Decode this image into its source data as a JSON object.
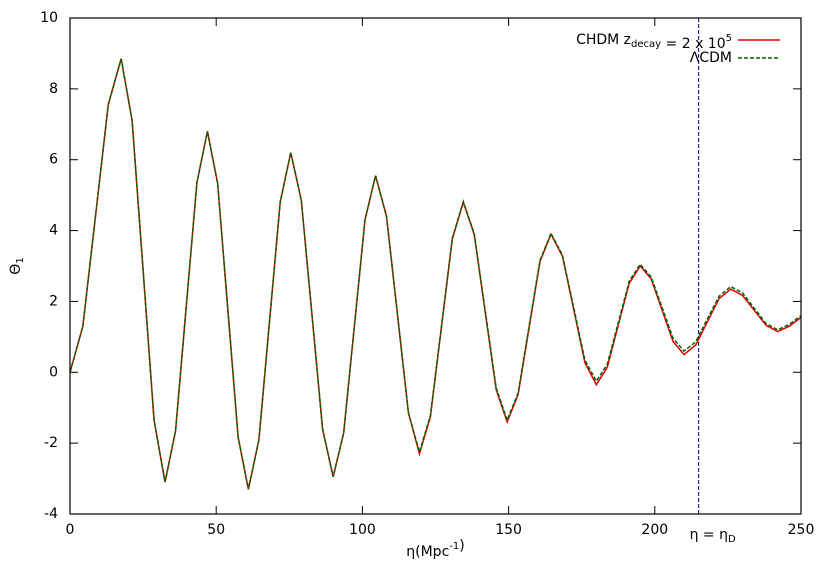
{
  "chart_data": {
    "type": "line",
    "xlabel": [
      "η(Mpc",
      {
        "sup": "-1"
      },
      ")"
    ],
    "ylabel": [
      "Θ",
      {
        "sub": "1"
      }
    ],
    "xlim": [
      0,
      250
    ],
    "xticks": [
      0,
      50,
      100,
      150,
      200,
      250
    ],
    "ylim": [
      -4,
      10
    ],
    "yticks": [
      -4,
      -2,
      0,
      2,
      4,
      6,
      8,
      10
    ],
    "legend": "top-right",
    "annotation": {
      "text": [
        "η = η",
        {
          "sub": "D"
        }
      ],
      "x": 215,
      "color": "#00008b"
    },
    "x": [
      0,
      4.4,
      8.75,
      13.1,
      17.5,
      21.25,
      25,
      28.75,
      32.5,
      36.1,
      39.75,
      43.4,
      47,
      50.5,
      54,
      57.5,
      61,
      64.6,
      68.25,
      71.9,
      75.5,
      79.1,
      82.75,
      86.4,
      90,
      93.6,
      97.25,
      100.9,
      104.5,
      108.25,
      112,
      115.75,
      119.5,
      123.25,
      127,
      130.75,
      134.5,
      138.25,
      142,
      145.75,
      149.5,
      153.25,
      157,
      160.75,
      164.5,
      168.4,
      172.25,
      176.1,
      180,
      183.75,
      187.5,
      191.25,
      195,
      198.75,
      202.5,
      206.25,
      210,
      214,
      218,
      222,
      226,
      230,
      234,
      238,
      242,
      246,
      250
    ],
    "series": [
      {
        "name": [
          "CHDM z",
          {
            "sub": "decay"
          },
          " = 2 x 10",
          {
            "sup": "5"
          }
        ],
        "color": "#e00000",
        "dash": false,
        "values": [
          0,
          1.3,
          4.43,
          7.56,
          8.85,
          7.1,
          2.88,
          -1.35,
          -3.1,
          -1.65,
          1.85,
          5.35,
          6.8,
          5.33,
          1.75,
          -1.83,
          -3.3,
          -1.91,
          1.45,
          4.81,
          6.2,
          4.86,
          1.63,
          -1.61,
          -2.95,
          -1.71,
          1.3,
          4.31,
          5.55,
          4.4,
          1.63,
          -1.15,
          -2.3,
          -1.26,
          1.25,
          3.76,
          4.8,
          3.89,
          1.7,
          -0.49,
          -1.4,
          -0.63,
          1.25,
          3.13,
          3.9,
          3.28,
          1.78,
          0.27,
          -0.35,
          0.14,
          1.33,
          2.51,
          3.0,
          2.64,
          1.75,
          0.87,
          0.5,
          0.77,
          1.43,
          2.08,
          2.35,
          2.17,
          1.75,
          1.33,
          1.15,
          1.3,
          1.55
        ]
      },
      {
        "name": [
          "ΛCDM"
        ],
        "color": "#006400",
        "dash": true,
        "values": [
          0,
          1.3,
          4.43,
          7.56,
          8.85,
          7.1,
          2.88,
          -1.35,
          -3.1,
          -1.65,
          1.85,
          5.35,
          6.8,
          5.33,
          1.75,
          -1.83,
          -3.3,
          -1.91,
          1.45,
          4.81,
          6.2,
          4.86,
          1.63,
          -1.61,
          -2.95,
          -1.71,
          1.3,
          4.31,
          5.55,
          4.4,
          1.63,
          -1.15,
          -2.25,
          -1.22,
          1.27,
          3.78,
          4.82,
          3.91,
          1.74,
          -0.44,
          -1.35,
          -0.59,
          1.3,
          3.16,
          3.92,
          3.31,
          1.83,
          0.34,
          -0.25,
          0.23,
          1.4,
          2.57,
          3.05,
          2.69,
          1.83,
          0.96,
          0.6,
          0.86,
          1.51,
          2.15,
          2.42,
          2.24,
          1.81,
          1.38,
          1.2,
          1.35,
          1.6
        ]
      }
    ]
  }
}
